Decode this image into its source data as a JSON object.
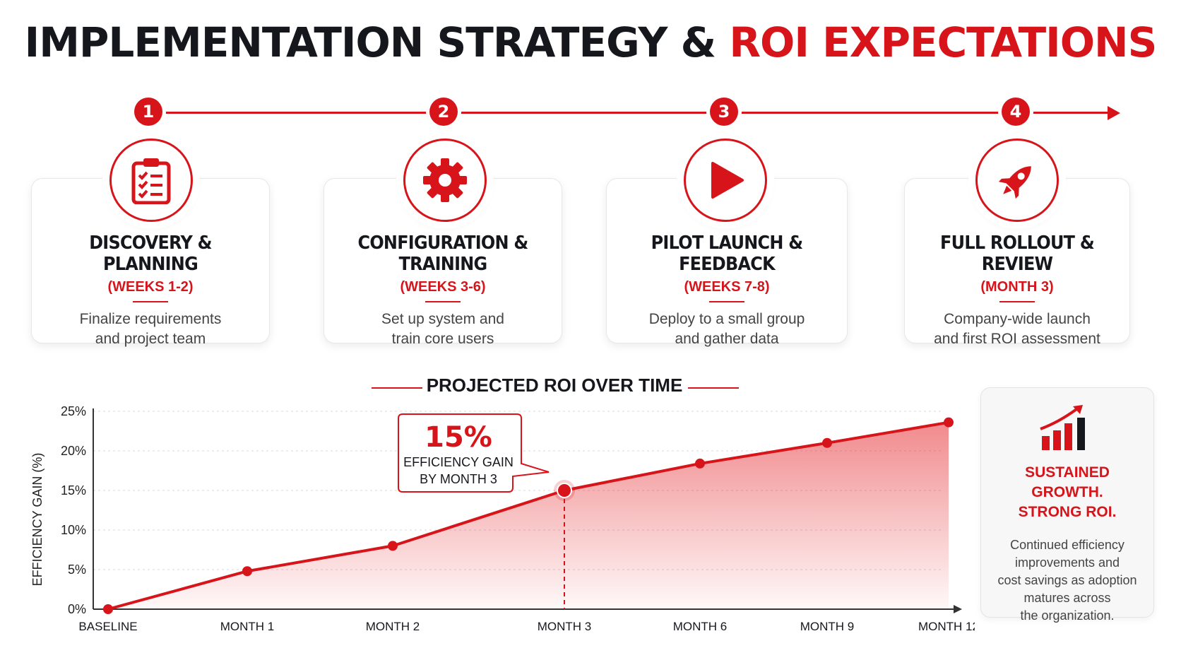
{
  "header": {
    "title_part1": "IMPLEMENTATION STRATEGY &",
    "title_part2": "ROI EXPECTATIONS"
  },
  "colors": {
    "accent": "#d7141a",
    "dark": "#15171c"
  },
  "phases": [
    {
      "number": "1",
      "icon": "clipboard-checklist-icon",
      "title": "DISCOVERY & PLANNING",
      "period": "(WEEKS 1-2)",
      "description_line1": "Finalize requirements",
      "description_line2": "and project team"
    },
    {
      "number": "2",
      "icon": "gear-icon",
      "title": "CONFIGURATION & TRAINING",
      "period": "(WEEKS 3-6)",
      "description_line1": "Set up system and",
      "description_line2": "train core users"
    },
    {
      "number": "3",
      "icon": "play-icon",
      "title": "PILOT LAUNCH & FEEDBACK",
      "period": "(WEEKS 7-8)",
      "description_line1": "Deploy to a small group",
      "description_line2": "and gather data"
    },
    {
      "number": "4",
      "icon": "rocket-icon",
      "title": "FULL ROLLOUT & REVIEW",
      "period": "(MONTH 3)",
      "description_line1": "Company-wide launch",
      "description_line2": "and first ROI assessment"
    }
  ],
  "chart_data": {
    "type": "area",
    "title": "PROJECTED ROI OVER TIME",
    "ylabel": "EFFICIENCY GAIN (%)",
    "xlabel": "",
    "categories": [
      "BASELINE",
      "MONTH 1",
      "MONTH 2",
      "MONTH 3",
      "MONTH 6",
      "MONTH 9",
      "MONTH 12"
    ],
    "values": [
      0,
      4.8,
      8,
      15,
      18.4,
      21,
      23.6
    ],
    "yticks": [
      "0%",
      "5%",
      "10%",
      "15%",
      "20%",
      "25%"
    ],
    "ylim": [
      0,
      25
    ],
    "grid": true,
    "callout": {
      "value": "15%",
      "line1": "EFFICIENCY GAIN",
      "line2": "BY MONTH 3",
      "category": "MONTH 3"
    }
  },
  "side_card": {
    "icon": "growth-bar-chart-icon",
    "headline_line1": "SUSTAINED GROWTH.",
    "headline_line2": "STRONG ROI.",
    "body_line1": "Continued efficiency",
    "body_line2": "improvements and",
    "body_line3": "cost savings as adoption",
    "body_line4": "matures across",
    "body_line5": "the organization."
  }
}
